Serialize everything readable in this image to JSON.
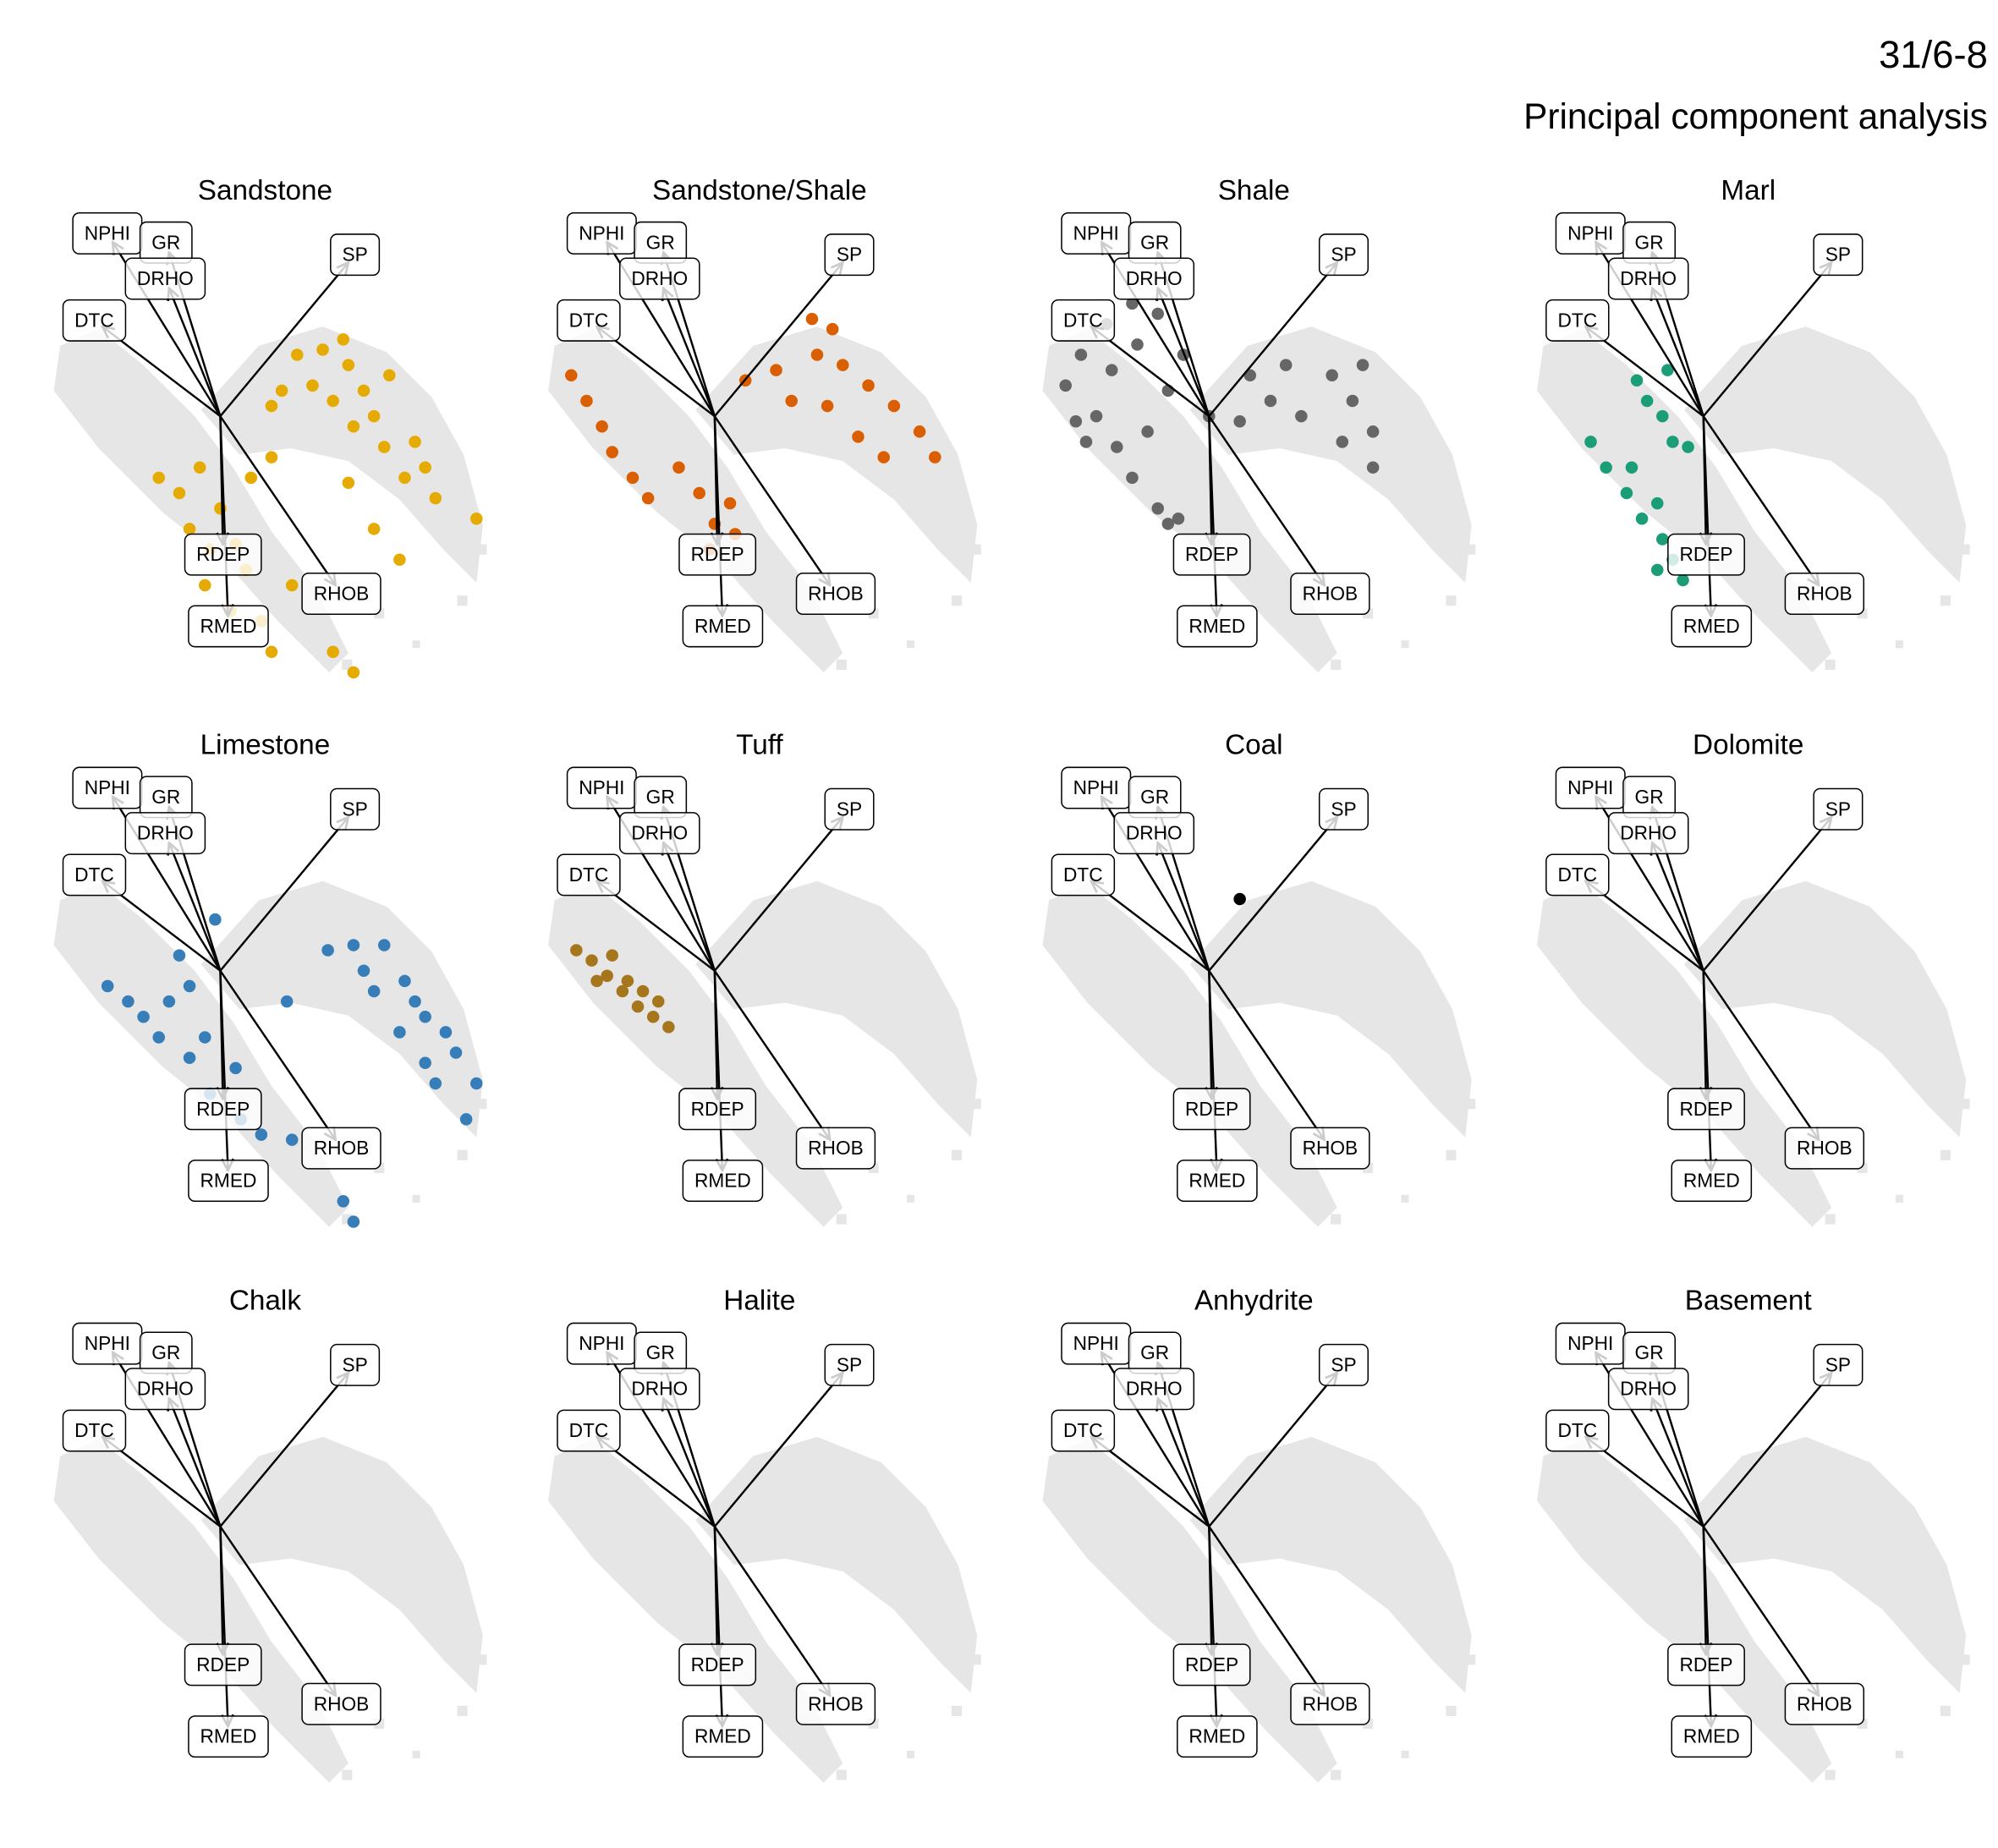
{
  "header": {
    "title": "31/6-8",
    "subtitle": "Principal component analysis"
  },
  "chart_data": [
    {
      "type": "scatter",
      "title": "Sandstone",
      "color": "#e6ab02",
      "xlim": [
        -3.5,
        5.5
      ],
      "ylim": [
        -5.25,
        3.75
      ],
      "x": [
        1.5,
        2.0,
        2.5,
        2.8,
        3.0,
        2.2,
        1.8,
        2.6,
        3.2,
        3.6,
        4.2,
        5.0,
        3.8,
        1.2,
        1.0,
        2.4,
        3.3,
        4.0,
        3.0,
        3.5,
        2.5,
        -1.2,
        -0.8,
        -0.4,
        0,
        -0.6,
        -0.2,
        0.3,
        0.5,
        -0.3,
        0.2,
        0.8,
        1.0,
        2.2,
        2.6,
        1.4,
        0.6,
        1.0
      ],
      "y": [
        1.2,
        1.3,
        1.0,
        0.5,
        0,
        0.3,
        0.6,
        -0.2,
        -0.6,
        -1.2,
        -1.6,
        -2.0,
        -0.5,
        0.5,
        0.2,
        1.5,
        0.8,
        -1.0,
        -2.2,
        -2.8,
        -1.3,
        -1.2,
        -1.5,
        -1.0,
        -1.8,
        -2.2,
        -2.6,
        -2.5,
        -3.0,
        -3.3,
        -3.8,
        -4.0,
        -4.6,
        -4.6,
        -5.0,
        -3.3,
        -1.2,
        -0.8
      ],
      "loadings": [
        {
          "name": "NPHI",
          "x": -2.1,
          "y": 3.4
        },
        {
          "name": "GR",
          "x": -1.0,
          "y": 3.2
        },
        {
          "name": "SP",
          "x": 2.5,
          "y": 3.0
        },
        {
          "name": "DTC",
          "x": -2.3,
          "y": 1.75
        },
        {
          "name": "DRHO",
          "x": -1.0,
          "y": 2.5
        },
        {
          "name": "RDEP",
          "x": 0.05,
          "y": -2.5
        },
        {
          "name": "RHOB",
          "x": 2.25,
          "y": -3.3
        },
        {
          "name": "RMED",
          "x": 0.15,
          "y": -3.9
        }
      ]
    },
    {
      "type": "scatter",
      "title": "Sandstone/Shale",
      "color": "#d95f02",
      "xlim": [
        -3.5,
        5.5
      ],
      "ylim": [
        -5.25,
        3.75
      ],
      "x": [
        0.6,
        1.2,
        2.0,
        2.5,
        3.0,
        3.5,
        4.0,
        4.3,
        2.8,
        2.2,
        1.5,
        3.3,
        1.9,
        2.3,
        -2.8,
        -2.5,
        -2.2,
        -2.0,
        -1.6,
        -1.3,
        -0.7,
        -0.3,
        0,
        0.3,
        -0.1,
        0.4
      ],
      "y": [
        0.7,
        0.9,
        1.2,
        1.0,
        0.6,
        0.2,
        -0.3,
        -0.8,
        -0.4,
        0.2,
        0.3,
        -0.8,
        1.9,
        1.7,
        0.8,
        0.3,
        -0.2,
        -0.7,
        -1.2,
        -1.6,
        -1.0,
        -1.5,
        -2.1,
        -1.7,
        -2.6,
        -2.3
      ],
      "loadings": [
        {
          "name": "NPHI",
          "x": -2.1,
          "y": 3.4
        },
        {
          "name": "GR",
          "x": -1.0,
          "y": 3.2
        },
        {
          "name": "SP",
          "x": 2.5,
          "y": 3.0
        },
        {
          "name": "DTC",
          "x": -2.3,
          "y": 1.75
        },
        {
          "name": "DRHO",
          "x": -1.0,
          "y": 2.5
        },
        {
          "name": "RDEP",
          "x": 0.05,
          "y": -2.5
        },
        {
          "name": "RHOB",
          "x": 2.25,
          "y": -3.3
        },
        {
          "name": "RMED",
          "x": 0.15,
          "y": -3.9
        }
      ]
    },
    {
      "type": "scatter",
      "title": "Shale",
      "color": "#666666",
      "xlim": [
        -3.5,
        5.5
      ],
      "ylim": [
        -5.25,
        3.75
      ],
      "x": [
        -2.8,
        -2.5,
        -2.0,
        -1.5,
        -1.0,
        -0.5,
        -2.2,
        -1.8,
        -2.4,
        -1.5,
        -1.0,
        -0.6,
        -1.2,
        -0.8,
        -2.6,
        -1.9,
        -1.4,
        0.8,
        1.2,
        1.8,
        2.4,
        2.8,
        3.2,
        2.6,
        1.5,
        3.0,
        0.6,
        3.2,
        -0.8,
        0
      ],
      "y": [
        0.6,
        1.2,
        1.8,
        2.2,
        2.0,
        1.2,
        0,
        -0.6,
        -0.5,
        -1.2,
        -1.8,
        -2.0,
        -0.3,
        0.5,
        -0.1,
        0.9,
        1.4,
        0.8,
        0.3,
        0,
        0.8,
        0.3,
        -0.3,
        -0.5,
        1.0,
        1.0,
        -0.1,
        -1.0,
        -2.1,
        0
      ],
      "loadings": [
        {
          "name": "NPHI",
          "x": -2.1,
          "y": 3.4
        },
        {
          "name": "GR",
          "x": -1.0,
          "y": 3.2
        },
        {
          "name": "SP",
          "x": 2.5,
          "y": 3.0
        },
        {
          "name": "DTC",
          "x": -2.3,
          "y": 1.75
        },
        {
          "name": "DRHO",
          "x": -1.0,
          "y": 2.5
        },
        {
          "name": "RDEP",
          "x": 0.05,
          "y": -2.5
        },
        {
          "name": "RHOB",
          "x": 2.25,
          "y": -3.3
        },
        {
          "name": "RMED",
          "x": 0.15,
          "y": -3.9
        }
      ]
    },
    {
      "type": "scatter",
      "title": "Marl",
      "color": "#1b9e77",
      "xlim": [
        -3.5,
        5.5
      ],
      "ylim": [
        -5.25,
        3.75
      ],
      "x": [
        -1.3,
        -1.1,
        -0.8,
        -0.6,
        -2.2,
        -1.9,
        -1.5,
        -1.2,
        -0.8,
        -0.6,
        -0.9,
        -0.4,
        -1.4,
        -0.9,
        -0.3,
        -0.7
      ],
      "y": [
        0.7,
        0.3,
        0,
        -0.5,
        -0.5,
        -1.0,
        -1.5,
        -2.0,
        -2.4,
        -2.8,
        -3.0,
        -3.2,
        -1.0,
        -1.7,
        -0.6,
        0.9
      ],
      "loadings": [
        {
          "name": "NPHI",
          "x": -2.1,
          "y": 3.4
        },
        {
          "name": "GR",
          "x": -1.0,
          "y": 3.2
        },
        {
          "name": "SP",
          "x": 2.5,
          "y": 3.0
        },
        {
          "name": "DTC",
          "x": -2.3,
          "y": 1.75
        },
        {
          "name": "DRHO",
          "x": -1.0,
          "y": 2.5
        },
        {
          "name": "RDEP",
          "x": 0.05,
          "y": -2.5
        },
        {
          "name": "RHOB",
          "x": 2.25,
          "y": -3.3
        },
        {
          "name": "RMED",
          "x": 0.15,
          "y": -3.9
        }
      ]
    },
    {
      "type": "scatter",
      "title": "Limestone",
      "color": "#377eb8",
      "xlim": [
        -3.5,
        5.5
      ],
      "ylim": [
        -5.25,
        3.75
      ],
      "x": [
        2.1,
        2.6,
        3.2,
        3.6,
        4.0,
        4.6,
        5.0,
        4.8,
        3.0,
        3.5,
        4.2,
        4.4,
        2.8,
        3.8,
        4.0,
        -2.2,
        -1.8,
        -1.5,
        -1.0,
        -0.6,
        -1.2,
        -0.6,
        -0.2,
        0.4,
        0.8,
        1.4,
        -0.8,
        -0.1,
        1.3,
        2.4,
        2.6,
        -0.3,
        0.3
      ],
      "y": [
        0.4,
        0.5,
        0.5,
        -0.2,
        -0.9,
        -1.6,
        -2.2,
        -2.9,
        -0.4,
        -1.2,
        -2.2,
        -1.2,
        0,
        -0.6,
        -1.8,
        -0.3,
        -0.6,
        -0.9,
        -0.6,
        -0.3,
        -1.3,
        -1.7,
        -2.4,
        -2.9,
        -3.2,
        -3.3,
        0.3,
        1.0,
        -0.6,
        -4.5,
        -4.9,
        -1.3,
        -1.9
      ],
      "loadings": [
        {
          "name": "NPHI",
          "x": -2.1,
          "y": 3.4
        },
        {
          "name": "GR",
          "x": -1.0,
          "y": 3.2
        },
        {
          "name": "SP",
          "x": 2.5,
          "y": 3.0
        },
        {
          "name": "DTC",
          "x": -2.3,
          "y": 1.75
        },
        {
          "name": "DRHO",
          "x": -1.0,
          "y": 2.5
        },
        {
          "name": "RDEP",
          "x": 0.05,
          "y": -2.5
        },
        {
          "name": "RHOB",
          "x": 2.25,
          "y": -3.3
        },
        {
          "name": "RMED",
          "x": 0.15,
          "y": -3.9
        }
      ]
    },
    {
      "type": "scatter",
      "title": "Tuff",
      "color": "#a6761d",
      "xlim": [
        -3.5,
        5.5
      ],
      "ylim": [
        -5.25,
        3.75
      ],
      "x": [
        -2.7,
        -2.4,
        -2.1,
        -1.8,
        -1.5,
        -1.2,
        -0.9,
        -2.3,
        -1.7,
        -1.4,
        -2.0,
        -1.1
      ],
      "y": [
        0.4,
        0.2,
        -0.1,
        -0.4,
        -0.7,
        -0.9,
        -1.1,
        -0.2,
        -0.2,
        -0.4,
        0.3,
        -0.6
      ],
      "loadings": [
        {
          "name": "NPHI",
          "x": -2.1,
          "y": 3.4
        },
        {
          "name": "GR",
          "x": -1.0,
          "y": 3.2
        },
        {
          "name": "SP",
          "x": 2.5,
          "y": 3.0
        },
        {
          "name": "DTC",
          "x": -2.3,
          "y": 1.75
        },
        {
          "name": "DRHO",
          "x": -1.0,
          "y": 2.5
        },
        {
          "name": "RDEP",
          "x": 0.05,
          "y": -2.5
        },
        {
          "name": "RHOB",
          "x": 2.25,
          "y": -3.3
        },
        {
          "name": "RMED",
          "x": 0.15,
          "y": -3.9
        }
      ]
    },
    {
      "type": "scatter",
      "title": "Coal",
      "color": "#000000",
      "xlim": [
        -3.5,
        5.5
      ],
      "ylim": [
        -5.25,
        3.75
      ],
      "x": [
        0.6
      ],
      "y": [
        1.4
      ],
      "loadings": [
        {
          "name": "NPHI",
          "x": -2.1,
          "y": 3.4
        },
        {
          "name": "GR",
          "x": -1.0,
          "y": 3.2
        },
        {
          "name": "SP",
          "x": 2.5,
          "y": 3.0
        },
        {
          "name": "DTC",
          "x": -2.3,
          "y": 1.75
        },
        {
          "name": "DRHO",
          "x": -1.0,
          "y": 2.5
        },
        {
          "name": "RDEP",
          "x": 0.05,
          "y": -2.5
        },
        {
          "name": "RHOB",
          "x": 2.25,
          "y": -3.3
        },
        {
          "name": "RMED",
          "x": 0.15,
          "y": -3.9
        }
      ]
    },
    {
      "type": "scatter",
      "title": "Dolomite",
      "color": "#e7298a",
      "xlim": [
        -3.5,
        5.5
      ],
      "ylim": [
        -5.25,
        3.75
      ],
      "x": [],
      "y": [],
      "loadings": [
        {
          "name": "NPHI",
          "x": -2.1,
          "y": 3.4
        },
        {
          "name": "GR",
          "x": -1.0,
          "y": 3.2
        },
        {
          "name": "SP",
          "x": 2.5,
          "y": 3.0
        },
        {
          "name": "DTC",
          "x": -2.3,
          "y": 1.75
        },
        {
          "name": "DRHO",
          "x": -1.0,
          "y": 2.5
        },
        {
          "name": "RDEP",
          "x": 0.05,
          "y": -2.5
        },
        {
          "name": "RHOB",
          "x": 2.25,
          "y": -3.3
        },
        {
          "name": "RMED",
          "x": 0.15,
          "y": -3.9
        }
      ]
    },
    {
      "type": "scatter",
      "title": "Chalk",
      "color": "#66a61e",
      "xlim": [
        -3.5,
        5.5
      ],
      "ylim": [
        -5.25,
        3.75
      ],
      "x": [],
      "y": [],
      "loadings": [
        {
          "name": "NPHI",
          "x": -2.1,
          "y": 3.4
        },
        {
          "name": "GR",
          "x": -1.0,
          "y": 3.2
        },
        {
          "name": "SP",
          "x": 2.5,
          "y": 3.0
        },
        {
          "name": "DTC",
          "x": -2.3,
          "y": 1.75
        },
        {
          "name": "DRHO",
          "x": -1.0,
          "y": 2.5
        },
        {
          "name": "RDEP",
          "x": 0.05,
          "y": -2.5
        },
        {
          "name": "RHOB",
          "x": 2.25,
          "y": -3.3
        },
        {
          "name": "RMED",
          "x": 0.15,
          "y": -3.9
        }
      ]
    },
    {
      "type": "scatter",
      "title": "Halite",
      "color": "#7570b3",
      "xlim": [
        -3.5,
        5.5
      ],
      "ylim": [
        -5.25,
        3.75
      ],
      "x": [],
      "y": [],
      "loadings": [
        {
          "name": "NPHI",
          "x": -2.1,
          "y": 3.4
        },
        {
          "name": "GR",
          "x": -1.0,
          "y": 3.2
        },
        {
          "name": "SP",
          "x": 2.5,
          "y": 3.0
        },
        {
          "name": "DTC",
          "x": -2.3,
          "y": 1.75
        },
        {
          "name": "DRHO",
          "x": -1.0,
          "y": 2.5
        },
        {
          "name": "RDEP",
          "x": 0.05,
          "y": -2.5
        },
        {
          "name": "RHOB",
          "x": 2.25,
          "y": -3.3
        },
        {
          "name": "RMED",
          "x": 0.15,
          "y": -3.9
        }
      ]
    },
    {
      "type": "scatter",
      "title": "Anhydrite",
      "color": "#e41a1c",
      "xlim": [
        -3.5,
        5.5
      ],
      "ylim": [
        -5.25,
        3.75
      ],
      "x": [],
      "y": [],
      "loadings": [
        {
          "name": "NPHI",
          "x": -2.1,
          "y": 3.4
        },
        {
          "name": "GR",
          "x": -1.0,
          "y": 3.2
        },
        {
          "name": "SP",
          "x": 2.5,
          "y": 3.0
        },
        {
          "name": "DTC",
          "x": -2.3,
          "y": 1.75
        },
        {
          "name": "DRHO",
          "x": -1.0,
          "y": 2.5
        },
        {
          "name": "RDEP",
          "x": 0.05,
          "y": -2.5
        },
        {
          "name": "RHOB",
          "x": 2.25,
          "y": -3.3
        },
        {
          "name": "RMED",
          "x": 0.15,
          "y": -3.9
        }
      ]
    },
    {
      "type": "scatter",
      "title": "Basement",
      "color": "#999999",
      "xlim": [
        -3.5,
        5.5
      ],
      "ylim": [
        -5.25,
        3.75
      ],
      "x": [],
      "y": [],
      "loadings": [
        {
          "name": "NPHI",
          "x": -2.1,
          "y": 3.4
        },
        {
          "name": "GR",
          "x": -1.0,
          "y": 3.2
        },
        {
          "name": "SP",
          "x": 2.5,
          "y": 3.0
        },
        {
          "name": "DTC",
          "x": -2.3,
          "y": 1.75
        },
        {
          "name": "DRHO",
          "x": -1.0,
          "y": 2.5
        },
        {
          "name": "RDEP",
          "x": 0.05,
          "y": -2.5
        },
        {
          "name": "RHOB",
          "x": 2.25,
          "y": -3.3
        },
        {
          "name": "RMED",
          "x": 0.15,
          "y": -3.9
        }
      ]
    }
  ]
}
